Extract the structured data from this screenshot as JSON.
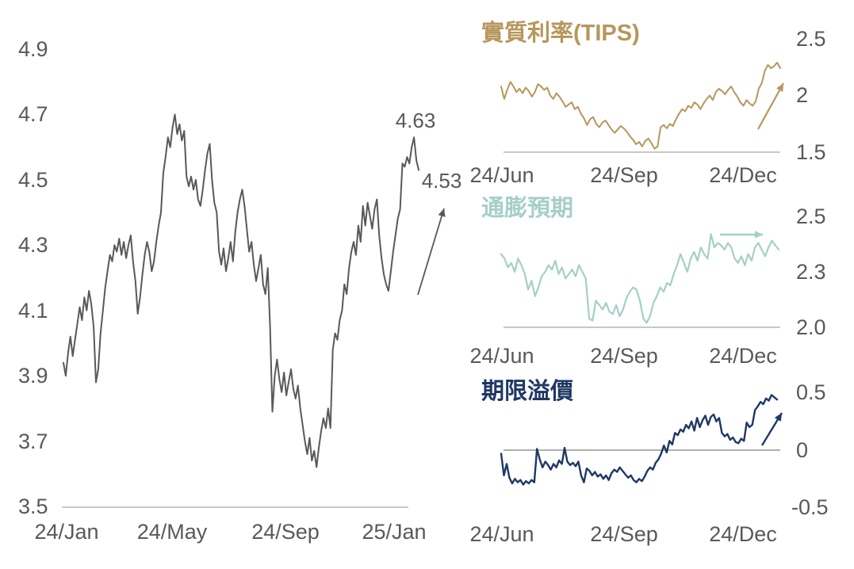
{
  "chart_data": [
    {
      "id": "us10y-yield",
      "type": "line",
      "title": "",
      "line_color": "#595959",
      "x_ticks": [
        "24/Jan",
        "24/May",
        "24/Sep",
        "25/Jan"
      ],
      "y_ticks": [
        "4.9",
        "4.7",
        "4.5",
        "4.3",
        "4.1",
        "3.9",
        "3.7",
        "3.5"
      ],
      "ylim": [
        3.5,
        4.9
      ],
      "legend_position": "none",
      "grid": false,
      "annotations": {
        "peak": "4.63",
        "last": "4.53"
      },
      "trend_arrow": "up",
      "values": [
        3.94,
        3.9,
        3.97,
        4.02,
        3.96,
        4.01,
        4.06,
        4.11,
        4.07,
        4.14,
        4.1,
        4.16,
        4.12,
        4.05,
        3.88,
        3.92,
        4.03,
        4.1,
        4.17,
        4.22,
        4.27,
        4.25,
        4.3,
        4.28,
        4.32,
        4.27,
        4.31,
        4.26,
        4.3,
        4.33,
        4.25,
        4.19,
        4.09,
        4.14,
        4.21,
        4.27,
        4.31,
        4.28,
        4.22,
        4.25,
        4.31,
        4.36,
        4.4,
        4.52,
        4.57,
        4.63,
        4.6,
        4.66,
        4.7,
        4.64,
        4.67,
        4.62,
        4.65,
        4.51,
        4.48,
        4.51,
        4.47,
        4.5,
        4.44,
        4.42,
        4.47,
        4.53,
        4.58,
        4.61,
        4.5,
        4.43,
        4.4,
        4.28,
        4.24,
        4.29,
        4.22,
        4.26,
        4.31,
        4.25,
        4.34,
        4.4,
        4.44,
        4.47,
        4.42,
        4.35,
        4.28,
        4.31,
        4.24,
        4.19,
        4.23,
        4.27,
        4.18,
        4.15,
        4.23,
        4.05,
        3.79,
        3.9,
        3.95,
        3.89,
        3.85,
        3.91,
        3.84,
        3.88,
        3.92,
        3.86,
        3.83,
        3.87,
        3.8,
        3.75,
        3.7,
        3.66,
        3.71,
        3.64,
        3.67,
        3.62,
        3.68,
        3.73,
        3.77,
        3.74,
        3.8,
        3.74,
        3.98,
        4.03,
        4.01,
        4.07,
        4.1,
        4.18,
        4.15,
        4.23,
        4.28,
        4.31,
        4.27,
        4.36,
        4.31,
        4.42,
        4.36,
        4.43,
        4.39,
        4.35,
        4.41,
        4.44,
        4.33,
        4.26,
        4.21,
        4.18,
        4.16,
        4.22,
        4.28,
        4.33,
        4.38,
        4.41,
        4.55,
        4.54,
        4.57,
        4.55,
        4.6,
        4.63,
        4.56,
        4.53
      ]
    },
    {
      "id": "real-rate-tips",
      "type": "line",
      "title": "實質利率(TIPS)",
      "line_color": "#B6975C",
      "x_ticks": [
        "24/Jun",
        "24/Sep",
        "24/Dec"
      ],
      "y_ticks": [
        "2.5",
        "2",
        "1.5"
      ],
      "ylim": [
        1.5,
        2.5
      ],
      "legend_position": "none",
      "grid": false,
      "trend_arrow": "up",
      "values": [
        2.08,
        1.97,
        2.05,
        2.12,
        2.08,
        2.03,
        2.06,
        2.02,
        2.07,
        2.04,
        1.99,
        2.03,
        2.1,
        2.08,
        2.05,
        2.07,
        2.0,
        1.97,
        2.02,
        1.99,
        1.95,
        1.9,
        1.92,
        1.94,
        1.88,
        1.9,
        1.84,
        1.8,
        1.74,
        1.79,
        1.81,
        1.75,
        1.72,
        1.76,
        1.78,
        1.74,
        1.7,
        1.67,
        1.7,
        1.73,
        1.71,
        1.68,
        1.64,
        1.61,
        1.57,
        1.59,
        1.55,
        1.6,
        1.62,
        1.58,
        1.53,
        1.55,
        1.72,
        1.74,
        1.71,
        1.75,
        1.73,
        1.79,
        1.84,
        1.88,
        1.86,
        1.91,
        1.89,
        1.94,
        1.92,
        1.88,
        1.93,
        1.97,
        2.0,
        1.96,
        2.03,
        2.06,
        2.04,
        2.01,
        2.05,
        2.08,
        2.03,
        1.99,
        1.94,
        1.91,
        1.96,
        1.93,
        1.91,
        1.95,
        2.06,
        2.11,
        2.22,
        2.27,
        2.24,
        2.26,
        2.29,
        2.24
      ]
    },
    {
      "id": "inflation-expectations",
      "type": "line",
      "title": "通膨預期",
      "line_color": "#A5CFC7",
      "x_ticks": [
        "24/Jun",
        "24/Sep",
        "24/Dec"
      ],
      "y_ticks": [
        "2.5",
        "2.3",
        "2.0"
      ],
      "ylim": [
        2.0,
        2.5
      ],
      "legend_position": "none",
      "grid": false,
      "trend_arrow": "flat",
      "values": [
        2.33,
        2.31,
        2.27,
        2.29,
        2.25,
        2.31,
        2.28,
        2.24,
        2.17,
        2.21,
        2.14,
        2.18,
        2.23,
        2.25,
        2.28,
        2.26,
        2.3,
        2.24,
        2.27,
        2.22,
        2.24,
        2.26,
        2.23,
        2.28,
        2.25,
        2.22,
        2.04,
        2.03,
        2.12,
        2.1,
        2.08,
        2.11,
        2.07,
        2.06,
        2.1,
        2.05,
        2.08,
        2.13,
        2.16,
        2.18,
        2.17,
        2.12,
        2.04,
        2.02,
        2.05,
        2.11,
        2.14,
        2.18,
        2.16,
        2.2,
        2.19,
        2.24,
        2.28,
        2.33,
        2.29,
        2.25,
        2.31,
        2.34,
        2.3,
        2.36,
        2.33,
        2.31,
        2.42,
        2.36,
        2.38,
        2.37,
        2.35,
        2.38,
        2.36,
        2.31,
        2.29,
        2.32,
        2.28,
        2.33,
        2.3,
        2.36,
        2.38,
        2.35,
        2.32,
        2.36,
        2.39,
        2.37,
        2.35
      ]
    },
    {
      "id": "term-premium",
      "type": "line",
      "title": "期限溢價",
      "line_color": "#1F3864",
      "x_ticks": [
        "24/Jun",
        "24/Sep",
        "24/Dec"
      ],
      "y_ticks": [
        "0.5",
        "0",
        "-0.5"
      ],
      "ylim": [
        -0.5,
        0.5
      ],
      "legend_position": "none",
      "grid": false,
      "zero_line": true,
      "trend_arrow": "up",
      "values": [
        -0.03,
        -0.22,
        -0.12,
        -0.24,
        -0.29,
        -0.25,
        -0.28,
        -0.26,
        -0.3,
        -0.27,
        -0.29,
        -0.26,
        -0.28,
        0.01,
        -0.08,
        -0.15,
        -0.1,
        -0.13,
        -0.17,
        -0.12,
        -0.15,
        -0.09,
        -0.12,
        0.02,
        -0.1,
        -0.13,
        -0.11,
        -0.14,
        -0.1,
        -0.22,
        -0.28,
        -0.16,
        -0.18,
        -0.22,
        -0.19,
        -0.23,
        -0.21,
        -0.25,
        -0.22,
        -0.26,
        -0.2,
        -0.17,
        -0.19,
        -0.15,
        -0.18,
        -0.21,
        -0.24,
        -0.22,
        -0.26,
        -0.28,
        -0.25,
        -0.27,
        -0.23,
        -0.18,
        -0.15,
        -0.17,
        -0.11,
        -0.08,
        -0.03,
        0.04,
        -0.02,
        0.08,
        0.05,
        0.15,
        0.13,
        0.18,
        0.16,
        0.22,
        0.19,
        0.25,
        0.17,
        0.28,
        0.2,
        0.26,
        0.3,
        0.22,
        0.29,
        0.31,
        0.25,
        0.28,
        0.15,
        0.12,
        0.14,
        0.09,
        0.11,
        0.07,
        0.06,
        0.1,
        0.08,
        0.24,
        0.2,
        0.22,
        0.35,
        0.38,
        0.42,
        0.4,
        0.45,
        0.43,
        0.48,
        0.46,
        0.44
      ]
    }
  ]
}
